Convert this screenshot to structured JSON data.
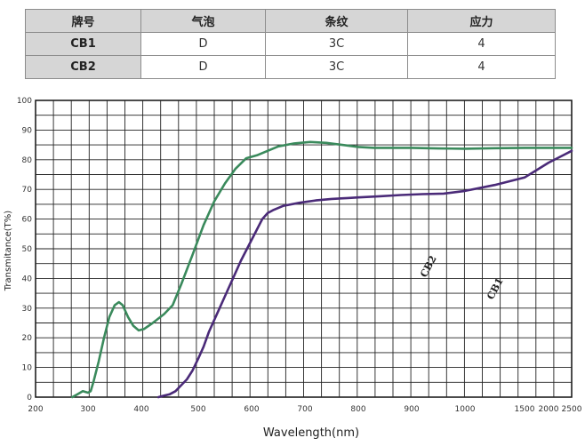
{
  "table": {
    "headers": [
      "牌号",
      "气泡",
      "条纹",
      "应力"
    ],
    "rows": [
      [
        "CB1",
        "D",
        "3C",
        "4"
      ],
      [
        "CB2",
        "D",
        "3C",
        "4"
      ]
    ]
  },
  "chart_data": {
    "type": "line",
    "xlabel": "Wavelength(nm)",
    "ylabel": "Transmitance(T%)",
    "x_ticks": [
      "200",
      "300",
      "400",
      "500",
      "600",
      "700",
      "800",
      "900",
      "1000",
      "1500",
      "2000",
      "2500"
    ],
    "y_ticks": [
      "0",
      "10",
      "20",
      "30",
      "40",
      "50",
      "60",
      "70",
      "80",
      "90",
      "100"
    ],
    "ylim": [
      0,
      100
    ],
    "grid": true,
    "series": [
      {
        "name": "CB2",
        "color": "#3a8a5c",
        "points": [
          [
            270,
            0
          ],
          [
            280,
            1
          ],
          [
            290,
            2
          ],
          [
            300,
            1.5
          ],
          [
            305,
            2
          ],
          [
            310,
            5
          ],
          [
            320,
            12
          ],
          [
            330,
            20
          ],
          [
            340,
            27
          ],
          [
            350,
            31
          ],
          [
            358,
            32
          ],
          [
            365,
            31
          ],
          [
            375,
            27
          ],
          [
            385,
            24
          ],
          [
            395,
            22.5
          ],
          [
            405,
            23
          ],
          [
            420,
            25
          ],
          [
            440,
            28
          ],
          [
            455,
            31
          ],
          [
            470,
            38
          ],
          [
            490,
            48
          ],
          [
            510,
            58
          ],
          [
            530,
            66
          ],
          [
            550,
            72
          ],
          [
            570,
            77
          ],
          [
            590,
            80.5
          ],
          [
            610,
            81.5
          ],
          [
            630,
            83
          ],
          [
            650,
            84.5
          ],
          [
            680,
            85.5
          ],
          [
            710,
            86
          ],
          [
            740,
            85.7
          ],
          [
            770,
            85
          ],
          [
            800,
            84.3
          ],
          [
            830,
            84
          ],
          [
            860,
            84
          ],
          [
            900,
            84
          ],
          [
            950,
            83.8
          ],
          [
            1000,
            83.7
          ],
          [
            1250,
            83.9
          ],
          [
            1500,
            84
          ],
          [
            2000,
            84
          ],
          [
            2500,
            84
          ]
        ]
      },
      {
        "name": "CB1",
        "color": "#4a2a78",
        "points": [
          [
            430,
            0
          ],
          [
            440,
            0.5
          ],
          [
            450,
            1
          ],
          [
            460,
            2
          ],
          [
            470,
            4
          ],
          [
            480,
            6
          ],
          [
            490,
            9
          ],
          [
            500,
            13
          ],
          [
            510,
            17
          ],
          [
            520,
            22
          ],
          [
            540,
            30
          ],
          [
            560,
            38
          ],
          [
            580,
            46
          ],
          [
            600,
            53
          ],
          [
            620,
            60
          ],
          [
            630,
            62
          ],
          [
            640,
            63
          ],
          [
            660,
            64.5
          ],
          [
            690,
            65.5
          ],
          [
            720,
            66.3
          ],
          [
            750,
            66.8
          ],
          [
            780,
            67.1
          ],
          [
            800,
            67.3
          ],
          [
            840,
            67.7
          ],
          [
            880,
            68.1
          ],
          [
            920,
            68.4
          ],
          [
            960,
            68.6
          ],
          [
            1000,
            69.5
          ],
          [
            1250,
            71.5
          ],
          [
            1500,
            74
          ],
          [
            1750,
            76.5
          ],
          [
            2000,
            79
          ],
          [
            2250,
            81
          ],
          [
            2500,
            83
          ]
        ]
      }
    ]
  }
}
